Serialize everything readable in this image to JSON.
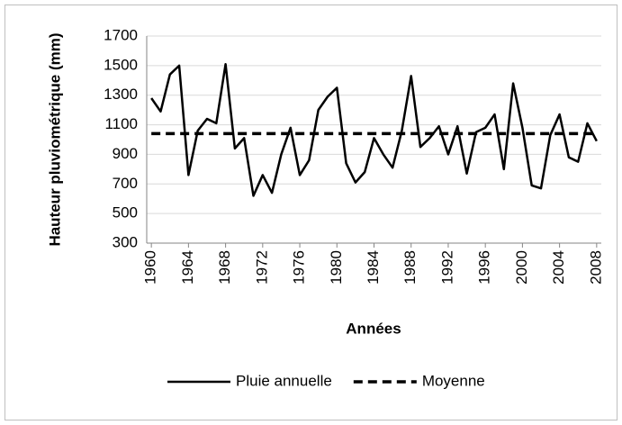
{
  "chart_data": {
    "type": "line",
    "x_label": "Années",
    "y_label": "Hauteur pluviométrique (mm)",
    "x": [
      1960,
      1961,
      1962,
      1963,
      1964,
      1965,
      1966,
      1967,
      1968,
      1969,
      1970,
      1971,
      1972,
      1973,
      1974,
      1975,
      1976,
      1977,
      1978,
      1979,
      1980,
      1981,
      1982,
      1983,
      1984,
      1985,
      1986,
      1987,
      1988,
      1989,
      1990,
      1991,
      1992,
      1993,
      1994,
      1995,
      1996,
      1997,
      1998,
      1999,
      2000,
      2001,
      2002,
      2003,
      2004,
      2005,
      2006,
      2007,
      2008
    ],
    "series": [
      {
        "name": "Pluie annuelle",
        "color": "#000000",
        "line_style": "solid",
        "values": [
          1280,
          1190,
          1440,
          1500,
          760,
          1060,
          1140,
          1110,
          1510,
          940,
          1010,
          620,
          760,
          640,
          900,
          1080,
          760,
          860,
          1200,
          1290,
          1350,
          840,
          710,
          780,
          1010,
          900,
          810,
          1060,
          1430,
          950,
          1010,
          1090,
          900,
          1090,
          770,
          1050,
          1080,
          1170,
          800,
          1380,
          1080,
          690,
          670,
          1030,
          1170,
          880,
          850,
          1110,
          990
        ]
      },
      {
        "name": "Moyenne",
        "color": "#000000",
        "line_style": "dashed",
        "values": [
          1040,
          1040,
          1040,
          1040,
          1040,
          1040,
          1040,
          1040,
          1040,
          1040,
          1040,
          1040,
          1040,
          1040,
          1040,
          1040,
          1040,
          1040,
          1040,
          1040,
          1040,
          1040,
          1040,
          1040,
          1040,
          1040,
          1040,
          1040,
          1040,
          1040,
          1040,
          1040,
          1040,
          1040,
          1040,
          1040,
          1040,
          1040,
          1040,
          1040,
          1040,
          1040,
          1040,
          1040,
          1040,
          1040,
          1040,
          1040,
          1040
        ]
      }
    ],
    "xlim": [
      1959.5,
      2008.5
    ],
    "xticks": [
      1960,
      1964,
      1968,
      1972,
      1976,
      1980,
      1984,
      1988,
      1992,
      1996,
      2000,
      2004,
      2008
    ],
    "ylim": [
      300,
      1700
    ],
    "yticks": [
      300,
      500,
      700,
      900,
      1100,
      1300,
      1500,
      1700
    ],
    "grid": true,
    "legend": "bottom"
  }
}
